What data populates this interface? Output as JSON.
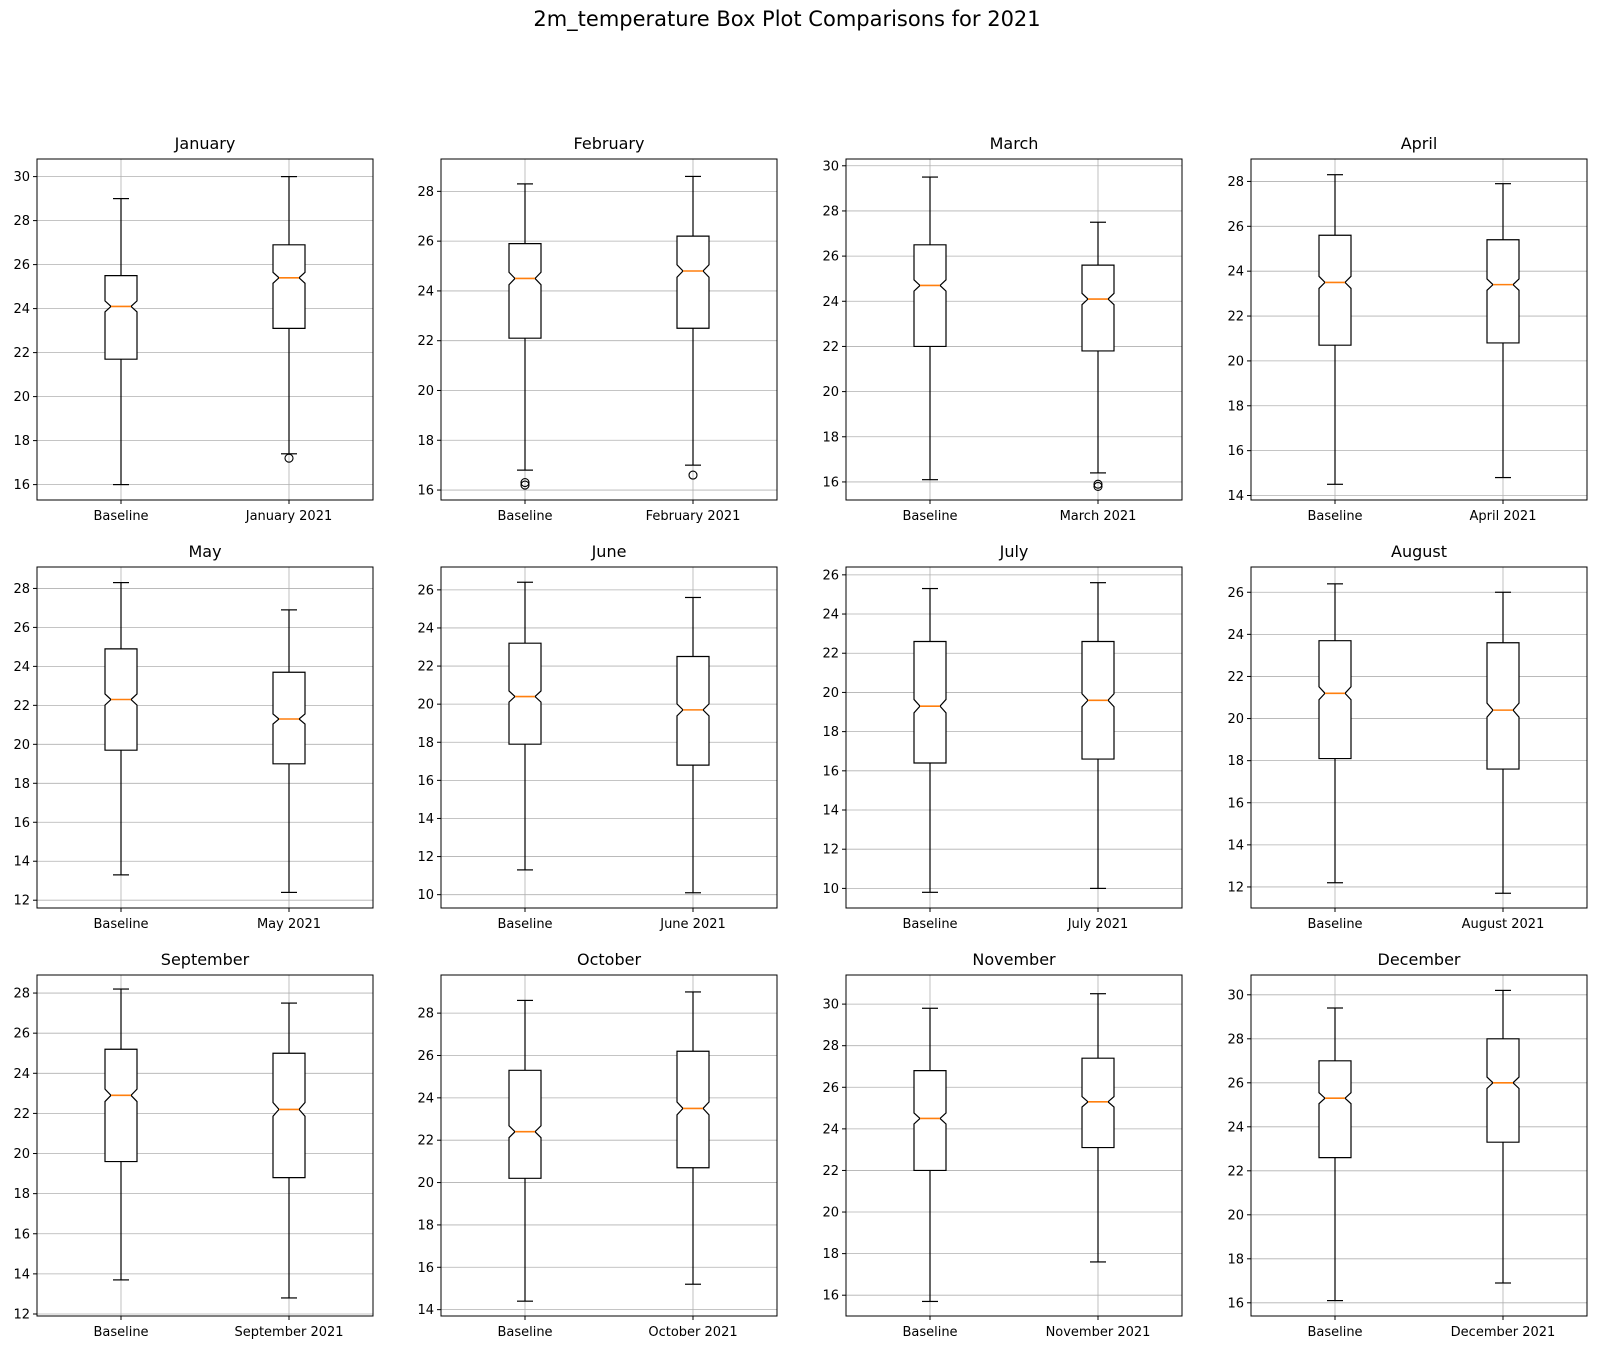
{
  "figure": {
    "title": "2m_temperature Box Plot Comparisons for 2021"
  },
  "chart_data": [
    {
      "type": "box",
      "title": "January",
      "categories": [
        "Baseline",
        "January 2021"
      ],
      "ylim": [
        15.3,
        30.8
      ],
      "yticks": [
        16,
        18,
        20,
        22,
        24,
        26,
        28,
        30
      ],
      "grid": true,
      "boxes": [
        {
          "whislo": 16.0,
          "q1": 21.7,
          "med": 24.1,
          "q3": 25.5,
          "whishi": 29.0,
          "fliers": []
        },
        {
          "whislo": 17.4,
          "q1": 23.1,
          "med": 25.4,
          "q3": 26.9,
          "whishi": 30.0,
          "fliers": [
            17.2
          ]
        }
      ]
    },
    {
      "type": "box",
      "title": "February",
      "categories": [
        "Baseline",
        "February 2021"
      ],
      "ylim": [
        15.6,
        29.3
      ],
      "yticks": [
        16,
        18,
        20,
        22,
        24,
        26,
        28
      ],
      "grid": true,
      "boxes": [
        {
          "whislo": 16.8,
          "q1": 22.1,
          "med": 24.5,
          "q3": 25.9,
          "whishi": 28.3,
          "fliers": [
            16.2,
            16.3
          ]
        },
        {
          "whislo": 17.0,
          "q1": 22.5,
          "med": 24.8,
          "q3": 26.2,
          "whishi": 28.6,
          "fliers": [
            16.6
          ]
        }
      ]
    },
    {
      "type": "box",
      "title": "March",
      "categories": [
        "Baseline",
        "March 2021"
      ],
      "ylim": [
        15.2,
        30.3
      ],
      "yticks": [
        16,
        18,
        20,
        22,
        24,
        26,
        28,
        30
      ],
      "grid": true,
      "boxes": [
        {
          "whislo": 16.1,
          "q1": 22.0,
          "med": 24.7,
          "q3": 26.5,
          "whishi": 29.5,
          "fliers": []
        },
        {
          "whislo": 16.4,
          "q1": 21.8,
          "med": 24.1,
          "q3": 25.6,
          "whishi": 27.5,
          "fliers": [
            15.8,
            15.9
          ]
        }
      ]
    },
    {
      "type": "box",
      "title": "April",
      "categories": [
        "Baseline",
        "April 2021"
      ],
      "ylim": [
        13.8,
        29.0
      ],
      "yticks": [
        14,
        16,
        18,
        20,
        22,
        24,
        26,
        28
      ],
      "grid": true,
      "boxes": [
        {
          "whislo": 14.5,
          "q1": 20.7,
          "med": 23.5,
          "q3": 25.6,
          "whishi": 28.3,
          "fliers": []
        },
        {
          "whislo": 14.8,
          "q1": 20.8,
          "med": 23.4,
          "q3": 25.4,
          "whishi": 27.9,
          "fliers": []
        }
      ]
    },
    {
      "type": "box",
      "title": "May",
      "categories": [
        "Baseline",
        "May 2021"
      ],
      "ylim": [
        11.6,
        29.1
      ],
      "yticks": [
        12,
        14,
        16,
        18,
        20,
        22,
        24,
        26,
        28
      ],
      "grid": true,
      "boxes": [
        {
          "whislo": 13.3,
          "q1": 19.7,
          "med": 22.3,
          "q3": 24.9,
          "whishi": 28.3,
          "fliers": []
        },
        {
          "whislo": 12.4,
          "q1": 19.0,
          "med": 21.3,
          "q3": 23.7,
          "whishi": 26.9,
          "fliers": []
        }
      ]
    },
    {
      "type": "box",
      "title": "June",
      "categories": [
        "Baseline",
        "June 2021"
      ],
      "ylim": [
        9.3,
        27.2
      ],
      "yticks": [
        10,
        12,
        14,
        16,
        18,
        20,
        22,
        24,
        26
      ],
      "grid": true,
      "boxes": [
        {
          "whislo": 11.3,
          "q1": 17.9,
          "med": 20.4,
          "q3": 23.2,
          "whishi": 26.4,
          "fliers": []
        },
        {
          "whislo": 10.1,
          "q1": 16.8,
          "med": 19.7,
          "q3": 22.5,
          "whishi": 25.6,
          "fliers": []
        }
      ]
    },
    {
      "type": "box",
      "title": "July",
      "categories": [
        "Baseline",
        "July 2021"
      ],
      "ylim": [
        9.0,
        26.4
      ],
      "yticks": [
        10,
        12,
        14,
        16,
        18,
        20,
        22,
        24,
        26
      ],
      "grid": true,
      "boxes": [
        {
          "whislo": 9.8,
          "q1": 16.4,
          "med": 19.3,
          "q3": 22.6,
          "whishi": 25.3,
          "fliers": []
        },
        {
          "whislo": 10.0,
          "q1": 16.6,
          "med": 19.6,
          "q3": 22.6,
          "whishi": 25.6,
          "fliers": []
        }
      ]
    },
    {
      "type": "box",
      "title": "August",
      "categories": [
        "Baseline",
        "August 2021"
      ],
      "ylim": [
        11.0,
        27.2
      ],
      "yticks": [
        12,
        14,
        16,
        18,
        20,
        22,
        24,
        26
      ],
      "grid": true,
      "boxes": [
        {
          "whislo": 12.2,
          "q1": 18.1,
          "med": 21.2,
          "q3": 23.7,
          "whishi": 26.4,
          "fliers": []
        },
        {
          "whislo": 11.7,
          "q1": 17.6,
          "med": 20.4,
          "q3": 23.6,
          "whishi": 26.0,
          "fliers": []
        }
      ]
    },
    {
      "type": "box",
      "title": "September",
      "categories": [
        "Baseline",
        "September 2021"
      ],
      "ylim": [
        11.9,
        28.9
      ],
      "yticks": [
        12,
        14,
        16,
        18,
        20,
        22,
        24,
        26,
        28
      ],
      "grid": true,
      "boxes": [
        {
          "whislo": 13.7,
          "q1": 19.6,
          "med": 22.9,
          "q3": 25.2,
          "whishi": 28.2,
          "fliers": []
        },
        {
          "whislo": 12.8,
          "q1": 18.8,
          "med": 22.2,
          "q3": 25.0,
          "whishi": 27.5,
          "fliers": []
        }
      ]
    },
    {
      "type": "box",
      "title": "October",
      "categories": [
        "Baseline",
        "October 2021"
      ],
      "ylim": [
        13.7,
        29.8
      ],
      "yticks": [
        14,
        16,
        18,
        20,
        22,
        24,
        26,
        28
      ],
      "grid": true,
      "boxes": [
        {
          "whislo": 14.4,
          "q1": 20.2,
          "med": 22.4,
          "q3": 25.3,
          "whishi": 28.6,
          "fliers": []
        },
        {
          "whislo": 15.2,
          "q1": 20.7,
          "med": 23.5,
          "q3": 26.2,
          "whishi": 29.0,
          "fliers": []
        }
      ]
    },
    {
      "type": "box",
      "title": "November",
      "categories": [
        "Baseline",
        "November 2021"
      ],
      "ylim": [
        15.0,
        31.4
      ],
      "yticks": [
        16,
        18,
        20,
        22,
        24,
        26,
        28,
        30
      ],
      "grid": true,
      "boxes": [
        {
          "whislo": 15.7,
          "q1": 22.0,
          "med": 24.5,
          "q3": 26.8,
          "whishi": 29.8,
          "fliers": []
        },
        {
          "whislo": 17.6,
          "q1": 23.1,
          "med": 25.3,
          "q3": 27.4,
          "whishi": 30.5,
          "fliers": []
        }
      ]
    },
    {
      "type": "box",
      "title": "December",
      "categories": [
        "Baseline",
        "December 2021"
      ],
      "ylim": [
        15.4,
        30.9
      ],
      "yticks": [
        16,
        18,
        20,
        22,
        24,
        26,
        28,
        30
      ],
      "grid": true,
      "boxes": [
        {
          "whislo": 16.1,
          "q1": 22.6,
          "med": 25.3,
          "q3": 27.0,
          "whishi": 29.4,
          "fliers": []
        },
        {
          "whislo": 16.9,
          "q1": 23.3,
          "med": 26.0,
          "q3": 28.0,
          "whishi": 30.2,
          "fliers": []
        }
      ]
    }
  ]
}
